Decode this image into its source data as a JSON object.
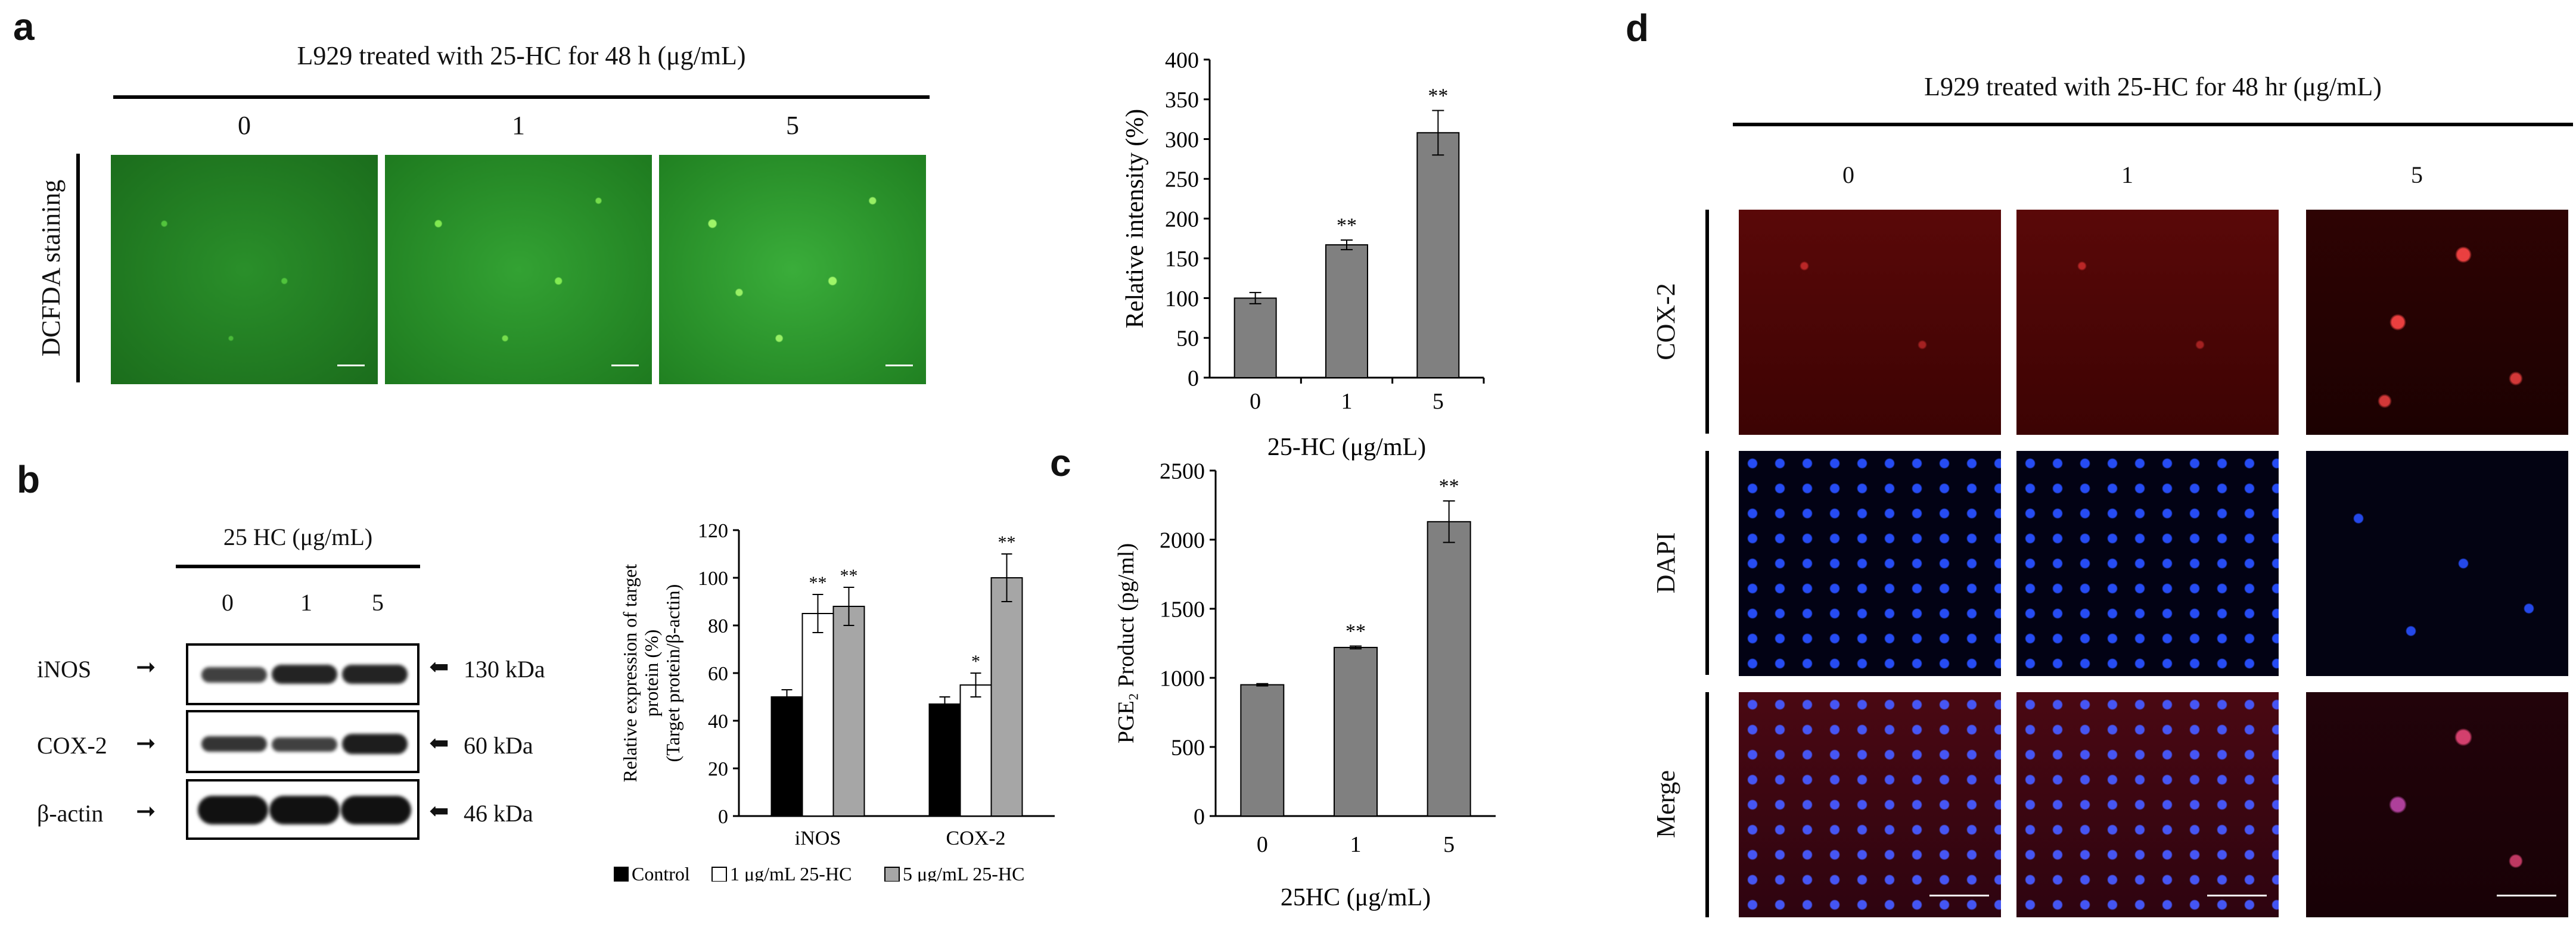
{
  "panel_labels": {
    "a": "a",
    "b": "b",
    "c": "c",
    "d": "d"
  },
  "panel_a": {
    "title": "L929 treated with 25-HC for 48 h (μg/mL)",
    "doses": [
      "0",
      "1",
      "5"
    ],
    "row_label": "DCFDA staining"
  },
  "panel_b": {
    "title": "25 HC (μg/mL)",
    "doses": [
      "0",
      "1",
      "5"
    ],
    "rows": [
      {
        "protein": "iNOS",
        "size": "130 kDa"
      },
      {
        "protein": "COX-2",
        "size": "60 kDa"
      },
      {
        "protein": "β-actin",
        "size": "46 kDa"
      }
    ],
    "arrow": "➞"
  },
  "panel_d": {
    "title": "L929 treated with 25-HC for 48 hr (μg/mL)",
    "doses": [
      "0",
      "1",
      "5"
    ],
    "row_labels": [
      "COX-2",
      "DAPI",
      "Merge"
    ]
  },
  "colors": {
    "gray_bar": "#808080",
    "light_gray_bar": "#a6a6a6",
    "black_bar": "#000000",
    "white_bar": "#ffffff"
  },
  "chart_data": [
    {
      "id": "a_chart",
      "type": "bar",
      "categories": [
        "0",
        "1",
        "5"
      ],
      "values": [
        100,
        167,
        308
      ],
      "errors": [
        7,
        6,
        28
      ],
      "significance": [
        "",
        "**",
        "**"
      ],
      "xlabel": "25-HC (μg/mL)",
      "ylabel": "Relative intensity (%)",
      "ylim": [
        0,
        400
      ],
      "yticks": [
        0,
        50,
        100,
        150,
        200,
        250,
        300,
        350,
        400
      ],
      "color": "#808080"
    },
    {
      "id": "b_chart",
      "type": "bar",
      "categories": [
        "iNOS",
        "COX-2"
      ],
      "series": [
        {
          "name": "Control",
          "values": [
            50,
            47
          ],
          "errors": [
            3,
            3
          ],
          "significance": [
            "",
            ""
          ],
          "color": "#000000"
        },
        {
          "name": "1 μg/mL 25-HC",
          "values": [
            85,
            55
          ],
          "errors": [
            8,
            5
          ],
          "significance": [
            "**",
            "*"
          ],
          "color": "#ffffff"
        },
        {
          "name": "5 μg/mL 25-HC",
          "values": [
            88,
            100
          ],
          "errors": [
            8,
            10
          ],
          "significance": [
            "**",
            "**"
          ],
          "color": "#a6a6a6"
        }
      ],
      "ylabel_lines": [
        "Relative expression of target",
        "protein (%)",
        "(Target protein/β-actin)"
      ],
      "ylim": [
        0,
        120
      ],
      "yticks": [
        0,
        20,
        40,
        60,
        80,
        100,
        120
      ],
      "legend": [
        "Control",
        "1 μg/mL 25-HC",
        "5 μg/mL 25-HC"
      ]
    },
    {
      "id": "c_chart",
      "type": "bar",
      "categories": [
        "0",
        "1",
        "5"
      ],
      "values": [
        950,
        1220,
        2130
      ],
      "errors": [
        8,
        10,
        150
      ],
      "significance": [
        "",
        "**",
        "**"
      ],
      "xlabel": "25HC (μg/mL)",
      "ylabel": "PGE₂ Product (pg/ml)",
      "ylim": [
        0,
        2500
      ],
      "yticks": [
        0,
        500,
        1000,
        1500,
        2000,
        2500
      ],
      "color": "#808080"
    }
  ]
}
